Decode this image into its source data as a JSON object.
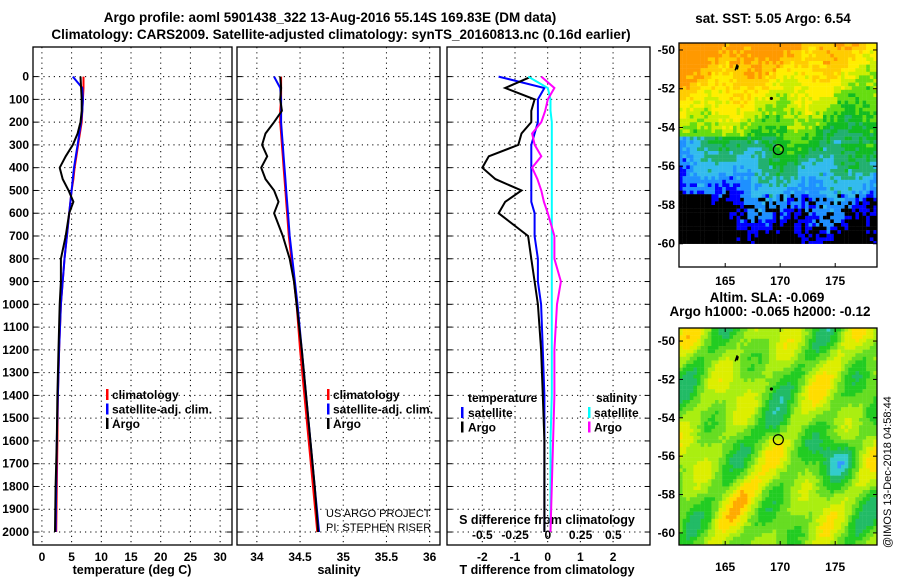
{
  "title": {
    "line1": "Argo profile: aoml 5901438_322 13-Aug-2016 55.14S 169.83E (DM data)",
    "line2": "Climatology: CARS2009. Satellite-adjusted climatology: synTS_20160813.nc (0.16d earlier)"
  },
  "colors": {
    "climatology": "#ff0000",
    "satellite": "#0000ff",
    "argo": "#000000",
    "sal_satellite": "#00ffff",
    "sal_argo": "#ff00ff"
  },
  "chart_data": [
    {
      "type": "line",
      "name": "temperature-profile",
      "xlabel": "temperature (deg C)",
      "ylabel": "depth",
      "xlim": [
        -1.5,
        32
      ],
      "ylim": [
        2057,
        -130
      ],
      "xticks": [
        0,
        5,
        10,
        15,
        20,
        25,
        30
      ],
      "yticks": [
        0,
        100,
        200,
        300,
        400,
        500,
        600,
        700,
        800,
        900,
        1000,
        1100,
        1200,
        1300,
        1400,
        1500,
        1600,
        1700,
        1800,
        1900,
        2000
      ],
      "grid": true,
      "depth": [
        0,
        50,
        100,
        150,
        200,
        250,
        300,
        350,
        400,
        450,
        500,
        550,
        600,
        700,
        800,
        900,
        1000,
        1200,
        1400,
        1600,
        1800,
        2000
      ],
      "legend": {
        "placement": "lower-right",
        "items": [
          {
            "label": "climatology",
            "color": "#ff0000"
          },
          {
            "label": "satellite-adj. clim.",
            "color": "#0000ff"
          },
          {
            "label": "Argo",
            "color": "#000000"
          }
        ]
      },
      "series": [
        {
          "name": "climatology",
          "color": "#ff0000",
          "values": [
            7.0,
            7.0,
            6.9,
            6.8,
            6.7,
            6.4,
            6.1,
            5.8,
            5.5,
            5.3,
            5.0,
            4.8,
            4.6,
            4.2,
            3.8,
            3.5,
            3.2,
            2.9,
            2.7,
            2.6,
            2.5,
            2.4
          ]
        },
        {
          "name": "satellite-adj. clim.",
          "color": "#0000ff",
          "values": [
            5.2,
            6.8,
            6.9,
            6.8,
            6.6,
            6.3,
            6.0,
            5.7,
            5.4,
            5.2,
            5.0,
            4.8,
            4.6,
            4.2,
            3.8,
            3.5,
            3.2,
            2.9,
            2.7,
            2.5,
            2.4,
            2.3
          ]
        },
        {
          "name": "Argo",
          "color": "#000000",
          "values": [
            6.5,
            6.6,
            6.7,
            6.7,
            6.5,
            6.0,
            5.2,
            4.0,
            3.0,
            3.5,
            4.5,
            5.3,
            4.6,
            4.0,
            3.2,
            3.2,
            3.0,
            2.8,
            2.6,
            2.5,
            2.3,
            2.2
          ]
        }
      ]
    },
    {
      "type": "line",
      "name": "salinity-profile",
      "xlabel": "salinity",
      "xlim": [
        33.77,
        36.12
      ],
      "ylim": [
        2057,
        -130
      ],
      "xticks": [
        34,
        34.5,
        35,
        35.5,
        36
      ],
      "grid": true,
      "depth": [
        0,
        50,
        100,
        150,
        200,
        250,
        300,
        350,
        400,
        450,
        500,
        550,
        600,
        700,
        800,
        900,
        1000,
        1200,
        1400,
        1600,
        1800,
        2000
      ],
      "legend": {
        "placement": "lower-right",
        "items": [
          {
            "label": "climatology",
            "color": "#ff0000"
          },
          {
            "label": "satellite-adj. clim.",
            "color": "#0000ff"
          },
          {
            "label": "Argo",
            "color": "#000000"
          }
        ]
      },
      "annotation": [
        "US ARGO PROJECT",
        "PI: STEPHEN RISER"
      ],
      "series": [
        {
          "name": "climatology",
          "color": "#ff0000",
          "values": [
            34.28,
            34.28,
            34.28,
            34.27,
            34.27,
            34.28,
            34.29,
            34.3,
            34.31,
            34.32,
            34.33,
            34.34,
            34.35,
            34.37,
            34.4,
            34.43,
            34.46,
            34.5,
            34.55,
            34.6,
            34.65,
            34.7
          ]
        },
        {
          "name": "satellite-adj. clim.",
          "color": "#0000ff",
          "values": [
            34.2,
            34.27,
            34.28,
            34.28,
            34.28,
            34.29,
            34.3,
            34.31,
            34.32,
            34.33,
            34.34,
            34.35,
            34.36,
            34.38,
            34.41,
            34.44,
            34.47,
            34.52,
            34.57,
            34.62,
            34.67,
            34.72
          ]
        },
        {
          "name": "Argo",
          "color": "#000000",
          "values": [
            34.27,
            34.28,
            34.27,
            34.29,
            34.2,
            34.1,
            34.06,
            34.12,
            34.05,
            34.1,
            34.2,
            34.25,
            34.2,
            34.3,
            34.38,
            34.43,
            34.46,
            34.52,
            34.57,
            34.62,
            34.67,
            34.71
          ]
        }
      ]
    },
    {
      "type": "line",
      "name": "difference-profile",
      "xlabel": "T difference from climatology",
      "x2label": "S difference from climatology",
      "xlim": [
        -3.08,
        3.13
      ],
      "x2lim": [
        -0.77,
        0.78
      ],
      "ylim": [
        2057,
        -130
      ],
      "xticks": [
        -2,
        -1,
        0,
        1,
        2
      ],
      "x2ticks": [
        "-0.5",
        "-0.25",
        "0",
        "0.25",
        "0.5"
      ],
      "grid": true,
      "depth": [
        0,
        50,
        100,
        150,
        200,
        250,
        300,
        350,
        400,
        450,
        500,
        550,
        600,
        700,
        800,
        900,
        1000,
        1200,
        1400,
        1600,
        1800,
        2000
      ],
      "legend": {
        "temperature": {
          "heading": "temperature",
          "items": [
            {
              "label": "satellite",
              "color": "#0000ff"
            },
            {
              "label": "Argo",
              "color": "#000000"
            }
          ]
        },
        "salinity": {
          "heading": "salinity",
          "items": [
            {
              "label": "satellite",
              "color": "#00ffff"
            },
            {
              "label": "Argo",
              "color": "#ff00ff"
            }
          ]
        }
      },
      "series": [
        {
          "name": "T satellite",
          "axis": "T",
          "color": "#0000ff",
          "values": [
            -1.5,
            -0.1,
            -0.3,
            -0.3,
            -0.3,
            -0.4,
            -0.5,
            -0.5,
            -0.5,
            -0.5,
            -0.5,
            -0.5,
            -0.4,
            -0.4,
            -0.3,
            -0.3,
            -0.2,
            -0.15,
            -0.1,
            -0.1,
            -0.1,
            -0.1
          ]
        },
        {
          "name": "T Argo",
          "axis": "T",
          "color": "#000000",
          "values": [
            -0.5,
            -1.3,
            -0.4,
            -0.5,
            -0.5,
            -0.8,
            -0.9,
            -1.8,
            -2.0,
            -1.6,
            -0.8,
            -1.3,
            -1.5,
            -0.6,
            -0.5,
            -0.4,
            -0.3,
            -0.2,
            -0.15,
            -0.1,
            -0.1,
            -0.1
          ]
        },
        {
          "name": "S satellite",
          "axis": "S",
          "color": "#00ffff",
          "values": [
            -0.15,
            0.0,
            0.02,
            0.02,
            0.03,
            0.03,
            0.03,
            0.03,
            0.03,
            0.03,
            0.03,
            0.03,
            0.03,
            0.03,
            0.03,
            0.03,
            0.03,
            0.03,
            0.03,
            0.02,
            0.02,
            0.02
          ]
        },
        {
          "name": "S Argo",
          "axis": "S",
          "color": "#ff00ff",
          "values": [
            -0.05,
            0.05,
            0.0,
            -0.02,
            -0.05,
            -0.12,
            -0.1,
            -0.05,
            -0.12,
            -0.08,
            -0.05,
            -0.03,
            0.0,
            0.05,
            0.05,
            0.1,
            0.07,
            0.05,
            0.05,
            0.04,
            0.03,
            0.02
          ]
        }
      ]
    },
    {
      "type": "heatmap",
      "name": "sst-map",
      "title": "sat. SST: 5.05 Argo: 6.54",
      "xlim": [
        160.8,
        178.8
      ],
      "ylim": [
        -61.2,
        -49.64
      ],
      "data_lat_min": -60,
      "xticks": [
        165,
        170,
        175
      ],
      "yticks": [
        -50,
        -52,
        -54,
        -56,
        -58,
        -60
      ],
      "markers": [
        {
          "type": "float-track",
          "lon": 166,
          "lat": -50.9
        },
        {
          "type": "dot",
          "lon": 169.2,
          "lat": -52.5
        },
        {
          "type": "profile-circle",
          "lon": 169.83,
          "lat": -55.14
        }
      ]
    },
    {
      "type": "heatmap",
      "name": "sla-map",
      "title": "Altim. SLA: -0.069",
      "subtitle": "Argo h1000: -0.065 h2000: -0.12",
      "xlim": [
        160.8,
        178.8
      ],
      "ylim": [
        -60.63,
        -49.32
      ],
      "xticks": [
        165,
        170,
        175
      ],
      "yticks": [
        -50,
        -52,
        -54,
        -56,
        -58,
        -60
      ],
      "markers": [
        {
          "type": "float-track",
          "lon": 166,
          "lat": -50.9
        },
        {
          "type": "dot",
          "lon": 169.2,
          "lat": -52.5
        },
        {
          "type": "profile-circle",
          "lon": 169.83,
          "lat": -55.14
        }
      ]
    }
  ],
  "credit": "@IMOS 13-Dec-2018 04:58:44"
}
